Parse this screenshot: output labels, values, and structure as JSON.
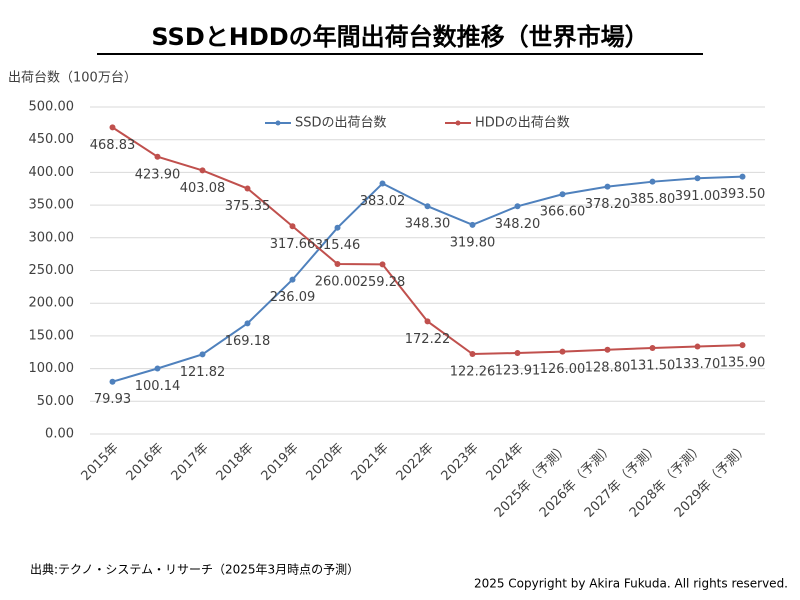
{
  "chart_data": {
    "type": "line",
    "title": "SSDとHDDの年間出荷台数推移（世界市場）",
    "y_label": "出荷台数（100万台）",
    "categories": [
      "2015年",
      "2016年",
      "2017年",
      "2018年",
      "2019年",
      "2020年",
      "2021年",
      "2022年",
      "2023年",
      "2024年",
      "2025年（予測）",
      "2026年（予測）",
      "2027年（予測）",
      "2028年（予測）",
      "2029年（予測）"
    ],
    "series": [
      {
        "name": "SSDの出荷台数",
        "color": "#4f81bd",
        "values": [
          79.93,
          100.14,
          121.82,
          169.18,
          236.09,
          315.46,
          383.02,
          348.3,
          319.8,
          348.2,
          366.6,
          378.2,
          385.8,
          391.0,
          393.5
        ],
        "value_labels": [
          "79.93",
          "100.14",
          "121.82",
          "169.18",
          "236.09",
          "315.46",
          "383.02",
          "348.30",
          "319.80",
          "348.20",
          "366.60",
          "378.20",
          "385.80",
          "391.00",
          "393.50"
        ]
      },
      {
        "name": "HDDの出荷台数",
        "color": "#c0504d",
        "values": [
          468.83,
          423.9,
          403.08,
          375.35,
          317.66,
          260.0,
          259.28,
          172.22,
          122.26,
          123.91,
          126.0,
          128.8,
          131.5,
          133.7,
          135.9
        ],
        "value_labels": [
          "468.83",
          "423.90",
          "403.08",
          "375.35",
          "317.66",
          "260.00",
          "259.28",
          "172.22",
          "122.26",
          "123.91",
          "126.00",
          "128.80",
          "131.50",
          "133.70",
          "135.90"
        ]
      }
    ],
    "ylim": [
      0,
      500
    ],
    "yticks": [
      {
        "value": 0,
        "label": "0.00"
      },
      {
        "value": 50,
        "label": "50.00"
      },
      {
        "value": 100,
        "label": "100.00"
      },
      {
        "value": 150,
        "label": "150.00"
      },
      {
        "value": 200,
        "label": "200.00"
      },
      {
        "value": 250,
        "label": "250.00"
      },
      {
        "value": 300,
        "label": "300.00"
      },
      {
        "value": 350,
        "label": "350.00"
      },
      {
        "value": 400,
        "label": "400.00"
      },
      {
        "value": 450,
        "label": "450.00"
      },
      {
        "value": 500,
        "label": "500.00"
      }
    ],
    "grid": true,
    "legend": "top",
    "source": "出典:テクノ・システム・リサーチ（2025年3月時点の予測）",
    "copyright": "2025 Copyright by Akira Fukuda.  All rights reserved."
  }
}
